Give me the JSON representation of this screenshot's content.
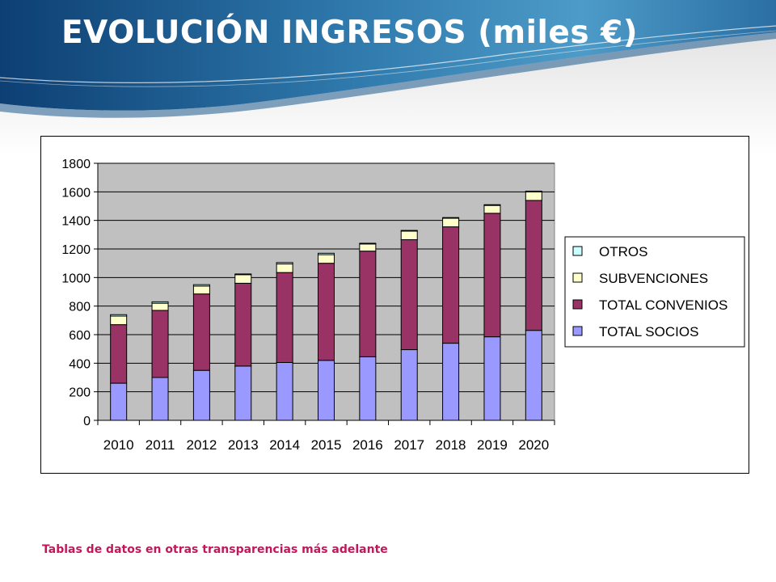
{
  "slide": {
    "title": "EVOLUCIÓN INGRESOS (miles €)",
    "footnote": "Tablas de datos en otras transparencias más adelante"
  },
  "colors": {
    "socios": "#9999ff",
    "convenios": "#993366",
    "subvenciones": "#ffffcc",
    "otros": "#ccffff",
    "plot_bg": "#c0c0c0",
    "title": "#ffffff",
    "footnote": "#c2185b"
  },
  "chart_data": {
    "type": "bar",
    "stacked": true,
    "title": "",
    "xlabel": "",
    "ylabel": "",
    "ylim": [
      0,
      1800
    ],
    "yticks": [
      0,
      200,
      400,
      600,
      800,
      1000,
      1200,
      1400,
      1600,
      1800
    ],
    "grid": true,
    "legend_position": "right",
    "categories": [
      "2010",
      "2011",
      "2012",
      "2013",
      "2014",
      "2015",
      "2016",
      "2017",
      "2018",
      "2019",
      "2020"
    ],
    "series": [
      {
        "name": "TOTAL SOCIOS",
        "color_key": "socios",
        "values": [
          260,
          300,
          350,
          380,
          405,
          420,
          445,
          495,
          540,
          585,
          630
        ]
      },
      {
        "name": "TOTAL CONVENIOS",
        "color_key": "convenios",
        "values": [
          410,
          470,
          535,
          580,
          630,
          680,
          740,
          770,
          815,
          865,
          910
        ]
      },
      {
        "name": "SUBVENCIONES",
        "color_key": "subvenciones",
        "values": [
          60,
          50,
          55,
          60,
          60,
          60,
          50,
          60,
          60,
          55,
          60
        ]
      },
      {
        "name": "OTROS",
        "color_key": "otros",
        "values": [
          10,
          10,
          10,
          5,
          10,
          10,
          5,
          5,
          5,
          5,
          5
        ]
      }
    ],
    "legend_order": [
      "OTROS",
      "SUBVENCIONES",
      "TOTAL CONVENIOS",
      "TOTAL SOCIOS"
    ]
  }
}
